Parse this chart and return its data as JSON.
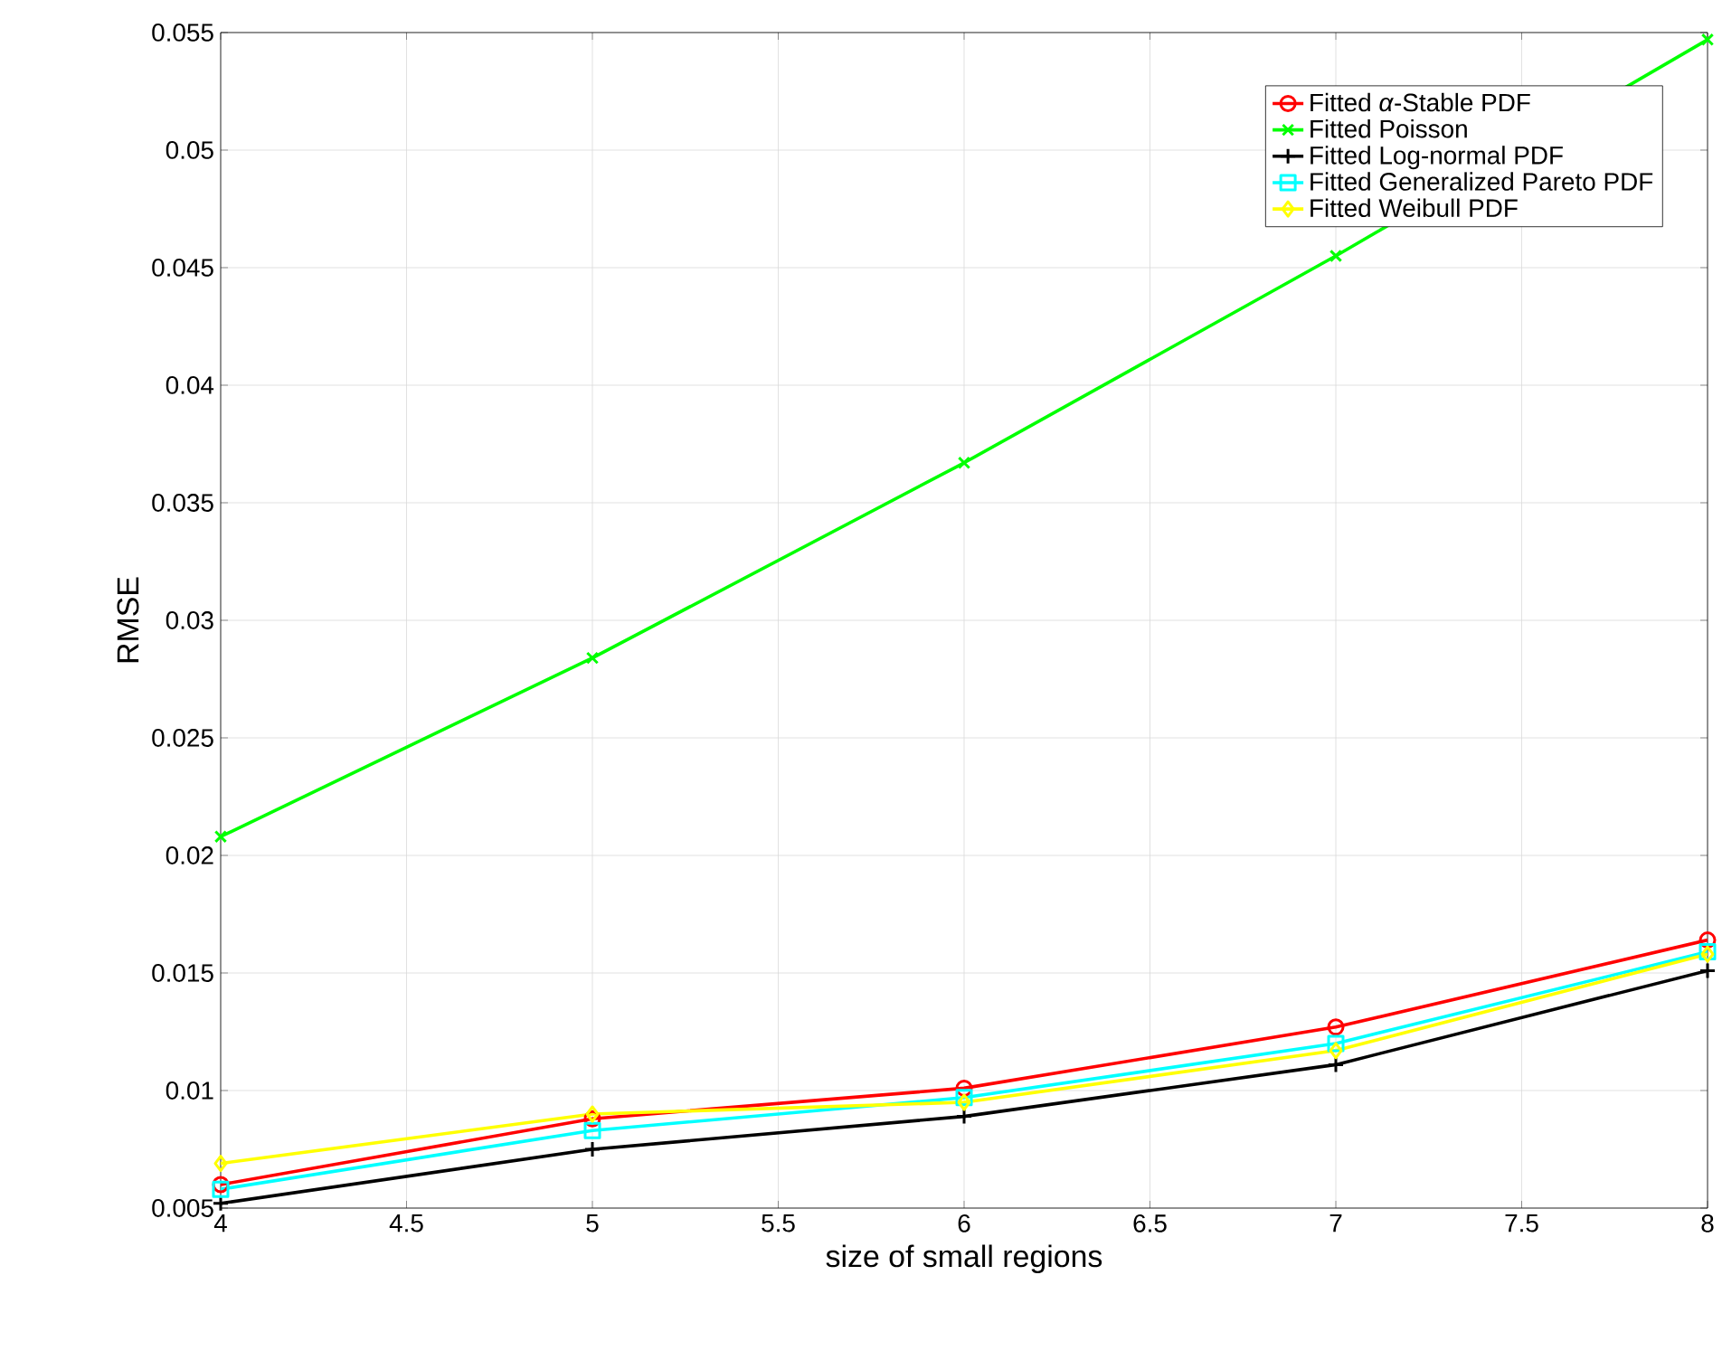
{
  "chart_data": {
    "type": "line",
    "xlabel": "size of small regions",
    "ylabel": "RMSE",
    "x": [
      4,
      5,
      6,
      7,
      8
    ],
    "series": [
      {
        "name": "Fitted *α*-Stable PDF",
        "color": "#ff0000",
        "marker": "circle",
        "values": [
          0.006,
          0.0088,
          0.0101,
          0.0127,
          0.0164
        ]
      },
      {
        "name": "Fitted Poisson",
        "color": "#00ff00",
        "marker": "cross",
        "values": [
          0.0208,
          0.0284,
          0.0367,
          0.0455,
          0.0547
        ]
      },
      {
        "name": "Fitted Log-normal PDF",
        "color": "#000000",
        "marker": "plus",
        "values": [
          0.0052,
          0.0075,
          0.0089,
          0.0111,
          0.0151
        ]
      },
      {
        "name": "Fitted Generalized Pareto PDF",
        "color": "#00ffff",
        "marker": "square",
        "values": [
          0.0058,
          0.0083,
          0.0097,
          0.012,
          0.0159
        ]
      },
      {
        "name": "Fitted Weibull PDF",
        "color": "#ffff00",
        "marker": "diamond",
        "values": [
          0.0069,
          0.009,
          0.0095,
          0.0117,
          0.0158
        ]
      }
    ],
    "xlim": [
      4,
      8
    ],
    "xticks": [
      4,
      4.5,
      5,
      5.5,
      6,
      6.5,
      7,
      7.5,
      8
    ],
    "ylim": [
      0.005,
      0.055
    ],
    "yticks": [
      0.005,
      0.01,
      0.015,
      0.02,
      0.025,
      0.03,
      0.035,
      0.04,
      0.045,
      0.05,
      0.055
    ],
    "grid": true,
    "legend": "top right",
    "line_style": "solid"
  }
}
